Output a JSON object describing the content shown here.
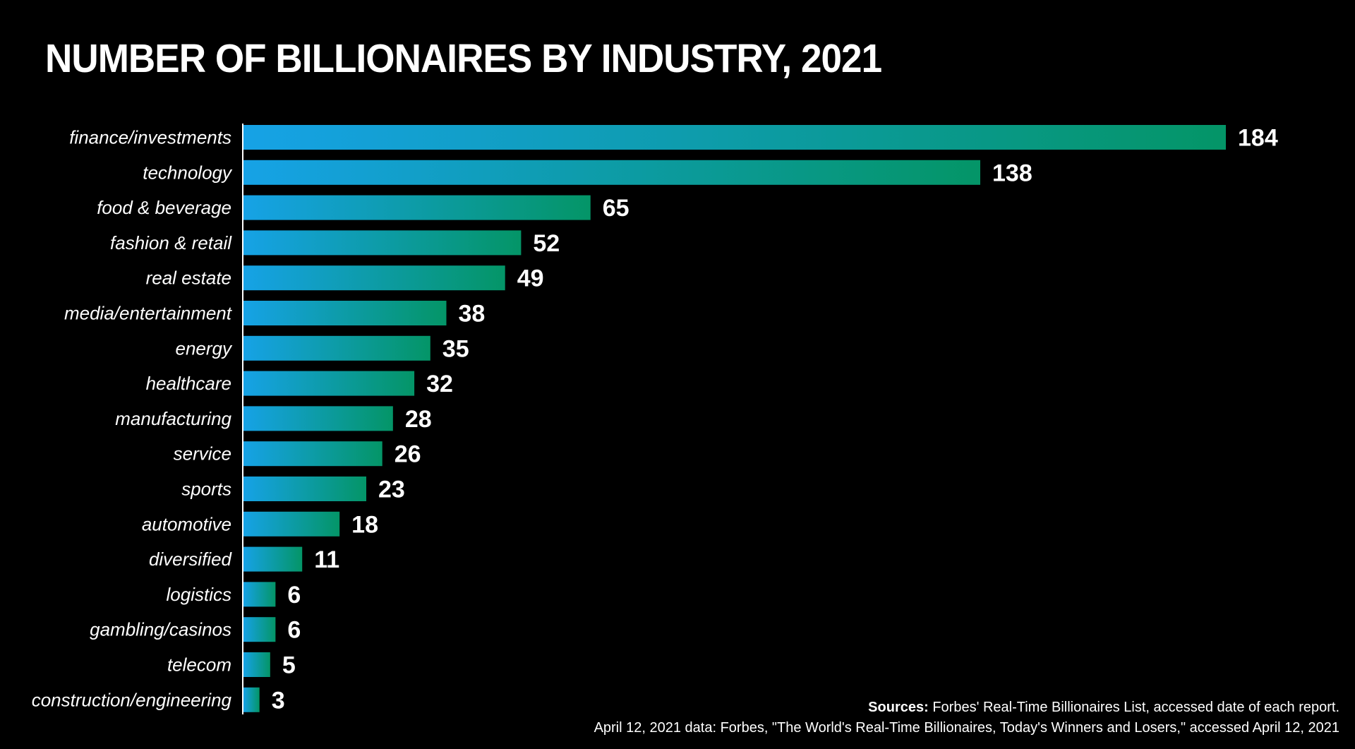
{
  "chart_data": {
    "type": "bar",
    "orientation": "horizontal",
    "title": "NUMBER OF BILLIONAIRES BY INDUSTRY, 2021",
    "xlabel": "",
    "ylabel": "",
    "xlim": [
      0,
      184
    ],
    "grid": false,
    "categories": [
      "finance/investments",
      "technology",
      "food & beverage",
      "fashion & retail",
      "real estate",
      "media/entertainment",
      "energy",
      "healthcare",
      "manufacturing",
      "service",
      "sports",
      "automotive",
      "diversified",
      "logistics",
      "gambling/casinos",
      "telecom",
      "construction/engineering"
    ],
    "values": [
      184,
      138,
      65,
      52,
      49,
      38,
      35,
      32,
      28,
      26,
      23,
      18,
      11,
      6,
      6,
      5,
      3
    ],
    "colors": {
      "background": "#000000",
      "bar_start": "#16a2e6",
      "bar_end": "#049567",
      "text": "#ffffff"
    }
  },
  "sources": {
    "label": "Sources:",
    "line1": "Forbes' Real-Time Billionaires List, accessed date of each report.",
    "line2": "April 12, 2021 data: Forbes, \"The World's Real-Time Billionaires, Today's Winners and Losers,\" accessed April 12, 2021"
  }
}
